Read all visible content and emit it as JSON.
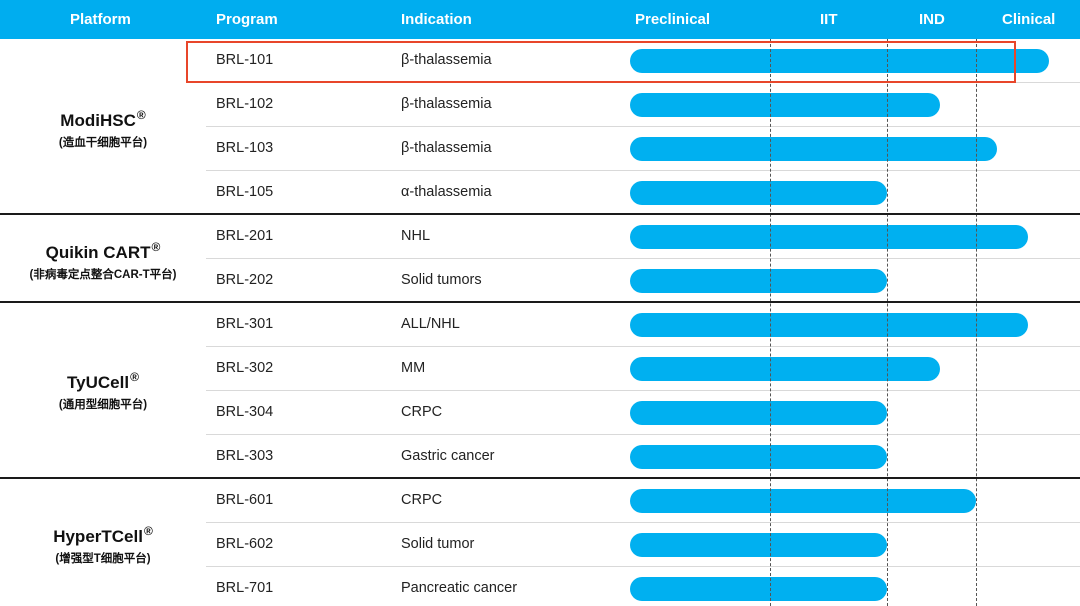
{
  "header": {
    "platform": "Platform",
    "program": "Program",
    "indication": "Indication",
    "preclinical": "Preclinical",
    "iit": "IIT",
    "ind": "IND",
    "clinical": "Clinical"
  },
  "platforms": [
    {
      "name": "ModiHSC",
      "reg": "®",
      "sub": "(造血干细胞平台)"
    },
    {
      "name": "Quikin CART",
      "reg": "®",
      "sub": "(非病毒定点整合CAR-T平台)"
    },
    {
      "name": "TyUCell",
      "reg": "®",
      "sub": "(通用型细胞平台)"
    },
    {
      "name": "HyperTCell",
      "reg": "®",
      "sub": "(增强型T细胞平台)"
    }
  ],
  "colors": {
    "header_bg": "#00adef",
    "bar": "#00b0f0",
    "highlight": "#e8462a"
  },
  "chart_data": {
    "type": "bar",
    "orientation": "horizontal",
    "stage_scale": [
      "Preclinical",
      "IIT",
      "IND",
      "Clinical"
    ],
    "categories": [
      "BRL-101",
      "BRL-102",
      "BRL-103",
      "BRL-105",
      "BRL-201",
      "BRL-202",
      "BRL-301",
      "BRL-302",
      "BRL-304",
      "BRL-303",
      "BRL-601",
      "BRL-602",
      "BRL-701"
    ],
    "indications": [
      "β-thalassemia",
      "β-thalassemia",
      "β-thalassemia",
      "α-thalassemia",
      "NHL",
      "Solid tumors",
      "ALL/NHL",
      "MM",
      "CRPC",
      "Gastric cancer",
      "CRPC",
      "Solid tumor",
      "Pancreatic cancer"
    ],
    "progress": [
      3.7,
      2.6,
      3.2,
      2.0,
      3.5,
      2.0,
      3.5,
      2.6,
      2.0,
      2.0,
      3.0,
      2.0,
      2.0
    ],
    "highlighted": "BRL-101"
  }
}
